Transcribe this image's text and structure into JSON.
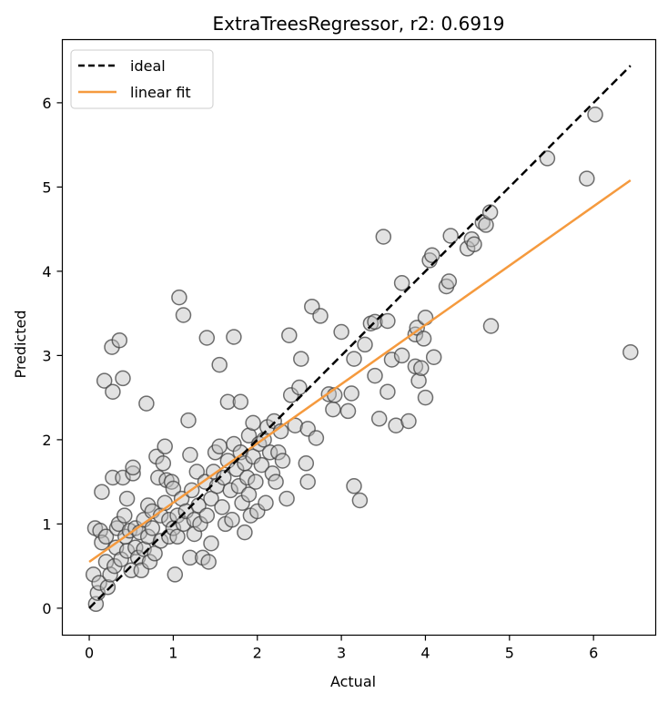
{
  "chart_data": {
    "type": "scatter",
    "title": "ExtraTreesRegressor, r2: 0.6919",
    "xlabel": "Actual",
    "ylabel": "Predicted",
    "xlim": [
      -0.32,
      6.74
    ],
    "ylim": [
      -0.32,
      6.75
    ],
    "xticks": [
      "0",
      "1",
      "2",
      "3",
      "4",
      "5",
      "6"
    ],
    "yticks": [
      "0",
      "1",
      "2",
      "3",
      "4",
      "5",
      "6"
    ],
    "grid": false,
    "legend_position": "top-left",
    "legend": [
      {
        "label": "ideal",
        "style": "dashed",
        "color": "#000000"
      },
      {
        "label": "linear fit",
        "style": "solid",
        "color": "#f59a3e"
      }
    ],
    "ideal_line": {
      "x": [
        0.0,
        6.44
      ],
      "y": [
        0.0,
        6.44
      ]
    },
    "fit_line": {
      "x": [
        0.0,
        6.44
      ],
      "y": [
        0.55,
        5.08
      ]
    },
    "marker_color": "#bfbfbf",
    "marker_edge_color": "#404040",
    "points": [
      [
        0.05,
        0.4
      ],
      [
        0.07,
        0.95
      ],
      [
        0.08,
        0.05
      ],
      [
        0.1,
        0.18
      ],
      [
        0.12,
        0.3
      ],
      [
        0.13,
        0.92
      ],
      [
        0.15,
        1.38
      ],
      [
        0.15,
        0.78
      ],
      [
        0.18,
        2.7
      ],
      [
        0.2,
        0.55
      ],
      [
        0.2,
        0.85
      ],
      [
        0.22,
        0.25
      ],
      [
        0.25,
        0.4
      ],
      [
        0.27,
        3.1
      ],
      [
        0.28,
        2.57
      ],
      [
        0.28,
        1.55
      ],
      [
        0.3,
        0.5
      ],
      [
        0.32,
        0.72
      ],
      [
        0.33,
        0.95
      ],
      [
        0.35,
        1.0
      ],
      [
        0.36,
        3.18
      ],
      [
        0.38,
        0.58
      ],
      [
        0.4,
        2.73
      ],
      [
        0.4,
        1.55
      ],
      [
        0.42,
        1.1
      ],
      [
        0.43,
        0.85
      ],
      [
        0.45,
        1.3
      ],
      [
        0.45,
        0.68
      ],
      [
        0.48,
        0.92
      ],
      [
        0.5,
        0.45
      ],
      [
        0.52,
        1.6
      ],
      [
        0.52,
        1.67
      ],
      [
        0.55,
        0.72
      ],
      [
        0.55,
        0.95
      ],
      [
        0.58,
        0.6
      ],
      [
        0.6,
        0.9
      ],
      [
        0.62,
        0.45
      ],
      [
        0.65,
        1.05
      ],
      [
        0.65,
        0.7
      ],
      [
        0.68,
        2.43
      ],
      [
        0.7,
        1.22
      ],
      [
        0.7,
        0.85
      ],
      [
        0.72,
        0.55
      ],
      [
        0.75,
        1.15
      ],
      [
        0.75,
        0.95
      ],
      [
        0.78,
        0.65
      ],
      [
        0.8,
        1.8
      ],
      [
        0.82,
        1.55
      ],
      [
        0.85,
        1.1
      ],
      [
        0.85,
        0.8
      ],
      [
        0.88,
        1.72
      ],
      [
        0.9,
        1.92
      ],
      [
        0.9,
        1.25
      ],
      [
        0.92,
        1.52
      ],
      [
        0.95,
        0.85
      ],
      [
        0.95,
        1.05
      ],
      [
        0.98,
        1.5
      ],
      [
        1.0,
        1.42
      ],
      [
        1.0,
        0.95
      ],
      [
        1.02,
        0.4
      ],
      [
        1.05,
        1.1
      ],
      [
        1.05,
        0.85
      ],
      [
        1.07,
        3.69
      ],
      [
        1.1,
        1.3
      ],
      [
        1.12,
        3.48
      ],
      [
        1.12,
        1.0
      ],
      [
        1.15,
        1.15
      ],
      [
        1.18,
        2.23
      ],
      [
        1.2,
        1.82
      ],
      [
        1.2,
        0.6
      ],
      [
        1.22,
        1.4
      ],
      [
        1.25,
        1.05
      ],
      [
        1.25,
        0.88
      ],
      [
        1.28,
        1.62
      ],
      [
        1.3,
        1.22
      ],
      [
        1.32,
        1.0
      ],
      [
        1.35,
        0.6
      ],
      [
        1.38,
        1.5
      ],
      [
        1.4,
        3.21
      ],
      [
        1.4,
        1.1
      ],
      [
        1.42,
        0.55
      ],
      [
        1.45,
        1.3
      ],
      [
        1.45,
        0.77
      ],
      [
        1.48,
        1.62
      ],
      [
        1.5,
        1.85
      ],
      [
        1.52,
        1.45
      ],
      [
        1.55,
        2.89
      ],
      [
        1.55,
        1.92
      ],
      [
        1.58,
        1.2
      ],
      [
        1.6,
        1.55
      ],
      [
        1.62,
        1.0
      ],
      [
        1.65,
        1.75
      ],
      [
        1.65,
        2.45
      ],
      [
        1.68,
        1.4
      ],
      [
        1.7,
        1.05
      ],
      [
        1.72,
        1.95
      ],
      [
        1.72,
        3.22
      ],
      [
        1.75,
        1.65
      ],
      [
        1.78,
        1.45
      ],
      [
        1.8,
        2.45
      ],
      [
        1.8,
        1.85
      ],
      [
        1.82,
        1.25
      ],
      [
        1.85,
        1.72
      ],
      [
        1.85,
        0.9
      ],
      [
        1.88,
        1.55
      ],
      [
        1.9,
        2.05
      ],
      [
        1.9,
        1.35
      ],
      [
        1.92,
        1.1
      ],
      [
        1.95,
        1.8
      ],
      [
        1.95,
        2.2
      ],
      [
        1.98,
        1.5
      ],
      [
        2.0,
        1.15
      ],
      [
        2.02,
        1.95
      ],
      [
        2.05,
        1.7
      ],
      [
        2.08,
        2.0
      ],
      [
        2.1,
        1.25
      ],
      [
        2.12,
        2.15
      ],
      [
        2.15,
        1.85
      ],
      [
        2.18,
        1.6
      ],
      [
        2.2,
        2.22
      ],
      [
        2.22,
        1.5
      ],
      [
        2.25,
        1.85
      ],
      [
        2.28,
        2.1
      ],
      [
        2.3,
        1.75
      ],
      [
        2.35,
        1.3
      ],
      [
        2.38,
        3.24
      ],
      [
        2.4,
        2.53
      ],
      [
        2.45,
        2.17
      ],
      [
        2.5,
        2.62
      ],
      [
        2.52,
        2.96
      ],
      [
        2.58,
        1.72
      ],
      [
        2.6,
        2.13
      ],
      [
        2.6,
        1.5
      ],
      [
        2.65,
        3.58
      ],
      [
        2.7,
        2.02
      ],
      [
        2.75,
        3.47
      ],
      [
        2.85,
        2.54
      ],
      [
        2.9,
        2.36
      ],
      [
        2.92,
        2.53
      ],
      [
        3.0,
        3.28
      ],
      [
        3.08,
        2.34
      ],
      [
        3.12,
        2.55
      ],
      [
        3.15,
        1.45
      ],
      [
        3.15,
        2.96
      ],
      [
        3.22,
        1.28
      ],
      [
        3.28,
        3.13
      ],
      [
        3.35,
        3.38
      ],
      [
        3.4,
        3.4
      ],
      [
        3.4,
        2.76
      ],
      [
        3.45,
        2.25
      ],
      [
        3.5,
        4.41
      ],
      [
        3.55,
        2.57
      ],
      [
        3.55,
        3.41
      ],
      [
        3.6,
        2.95
      ],
      [
        3.65,
        2.17
      ],
      [
        3.72,
        3.86
      ],
      [
        3.72,
        3.0
      ],
      [
        3.8,
        2.22
      ],
      [
        3.88,
        3.25
      ],
      [
        3.88,
        2.87
      ],
      [
        3.9,
        3.33
      ],
      [
        3.92,
        2.7
      ],
      [
        3.95,
        2.85
      ],
      [
        3.98,
        3.2
      ],
      [
        4.0,
        2.5
      ],
      [
        4.0,
        3.45
      ],
      [
        4.05,
        4.13
      ],
      [
        4.08,
        4.19
      ],
      [
        4.1,
        2.98
      ],
      [
        4.25,
        3.82
      ],
      [
        4.28,
        3.88
      ],
      [
        4.3,
        4.42
      ],
      [
        4.5,
        4.27
      ],
      [
        4.55,
        4.38
      ],
      [
        4.58,
        4.32
      ],
      [
        4.68,
        4.58
      ],
      [
        4.72,
        4.55
      ],
      [
        4.77,
        4.7
      ],
      [
        4.78,
        3.35
      ],
      [
        5.45,
        5.34
      ],
      [
        5.92,
        5.1
      ],
      [
        6.02,
        5.86
      ],
      [
        6.44,
        3.04
      ]
    ]
  }
}
